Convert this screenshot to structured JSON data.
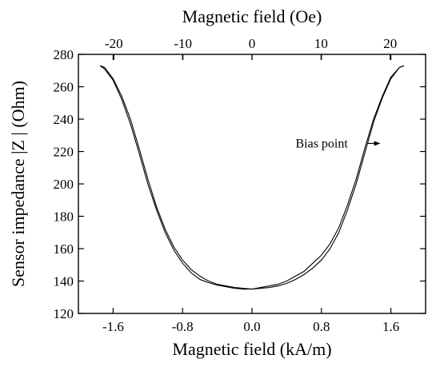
{
  "chart_data": {
    "type": "line",
    "xlabel": "Magnetic field (kA/m)",
    "x2label": "Magnetic field (Oe)",
    "ylabel": "Sensor impedance |Z | (Ohm)",
    "xlim": [
      -2.0,
      2.0
    ],
    "ylim": [
      120,
      280
    ],
    "x2lim": [
      -25.13,
      25.13
    ],
    "xticks": [
      -1.6,
      -0.8,
      0.0,
      0.8,
      1.6
    ],
    "xtick_labels": [
      "-1.6",
      "-0.8",
      "0.0",
      "0.8",
      "1.6"
    ],
    "x2ticks": [
      -20,
      -10,
      0,
      10,
      20
    ],
    "x2tick_labels": [
      "-20",
      "-10",
      "0",
      "10",
      "20"
    ],
    "yticks": [
      120,
      140,
      160,
      180,
      200,
      220,
      240,
      260,
      280
    ],
    "ytick_labels": [
      "120",
      "140",
      "160",
      "180",
      "200",
      "220",
      "240",
      "260",
      "280"
    ],
    "grid": false,
    "series": [
      {
        "x": [
          -1.75,
          -1.7,
          -1.6,
          -1.5,
          -1.4,
          -1.3,
          -1.2,
          -1.1,
          -1.0,
          -0.9,
          -0.8,
          -0.7,
          -0.6,
          -0.5,
          -0.4,
          -0.3,
          -0.2,
          -0.1,
          0.0,
          0.1,
          0.2,
          0.3,
          0.4,
          0.5,
          0.6,
          0.7,
          0.8,
          0.9,
          1.0,
          1.1,
          1.2,
          1.3,
          1.4,
          1.5,
          1.6,
          1.7,
          1.75
        ],
        "y": [
          273,
          272,
          265,
          254,
          240,
          222,
          203,
          186,
          172,
          161,
          153,
          147,
          143,
          140,
          138,
          137,
          136,
          135.5,
          135,
          135.5,
          136,
          137,
          138.5,
          141,
          144,
          148,
          153,
          160,
          170,
          184,
          200,
          219,
          238,
          253,
          265,
          272,
          273
        ]
      },
      {
        "x": [
          -1.75,
          -1.7,
          -1.6,
          -1.5,
          -1.4,
          -1.3,
          -1.2,
          -1.1,
          -1.0,
          -0.9,
          -0.8,
          -0.7,
          -0.6,
          -0.5,
          -0.4,
          -0.3,
          -0.2,
          -0.1,
          0.0,
          0.1,
          0.2,
          0.3,
          0.4,
          0.5,
          0.6,
          0.7,
          0.8,
          0.9,
          1.0,
          1.1,
          1.2,
          1.3,
          1.4,
          1.5,
          1.6,
          1.7,
          1.75
        ],
        "y": [
          273,
          271,
          264,
          252,
          237,
          219,
          200,
          184,
          170,
          159,
          151,
          145,
          141,
          139,
          137.5,
          136.5,
          135.5,
          135,
          135,
          136,
          137,
          138,
          140,
          143,
          146,
          151,
          156,
          163,
          173,
          187,
          203,
          222,
          240,
          254,
          266,
          272,
          273
        ]
      }
    ],
    "annotations": [
      {
        "text": "Bias point",
        "x": 1.35,
        "y": 225,
        "arrow_to": [
          1.48,
          225
        ]
      }
    ]
  }
}
